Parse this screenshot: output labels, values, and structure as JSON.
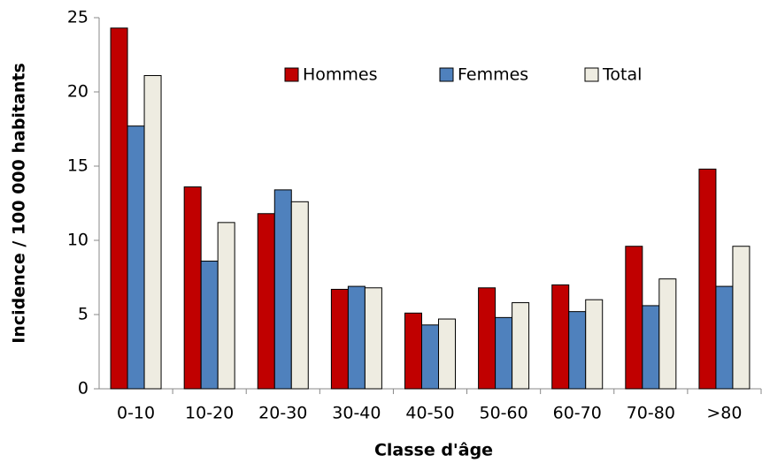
{
  "chart_data": {
    "type": "bar",
    "x_label": "Classe d'âge",
    "y_label": "Incidence / 100 000 habitants",
    "categories": [
      "0-10",
      "10-20",
      "20-30",
      "30-40",
      "40-50",
      "50-60",
      "60-70",
      "70-80",
      ">80"
    ],
    "series": [
      {
        "name": "Hommes",
        "color": "#c00000",
        "values": [
          24.3,
          13.6,
          11.8,
          6.7,
          5.1,
          6.8,
          7.0,
          9.6,
          14.8
        ]
      },
      {
        "name": "Femmes",
        "color": "#4f81bd",
        "values": [
          17.7,
          8.6,
          13.4,
          6.9,
          4.3,
          4.8,
          5.2,
          5.6,
          6.9
        ]
      },
      {
        "name": "Total",
        "color": "#eeece1",
        "values": [
          21.1,
          11.2,
          12.6,
          6.8,
          4.7,
          5.8,
          6.0,
          7.4,
          9.6
        ]
      }
    ],
    "ylim": [
      0,
      25
    ],
    "yticks": [
      0,
      5,
      10,
      15,
      20,
      25
    ],
    "grid": false,
    "legend": "top"
  }
}
